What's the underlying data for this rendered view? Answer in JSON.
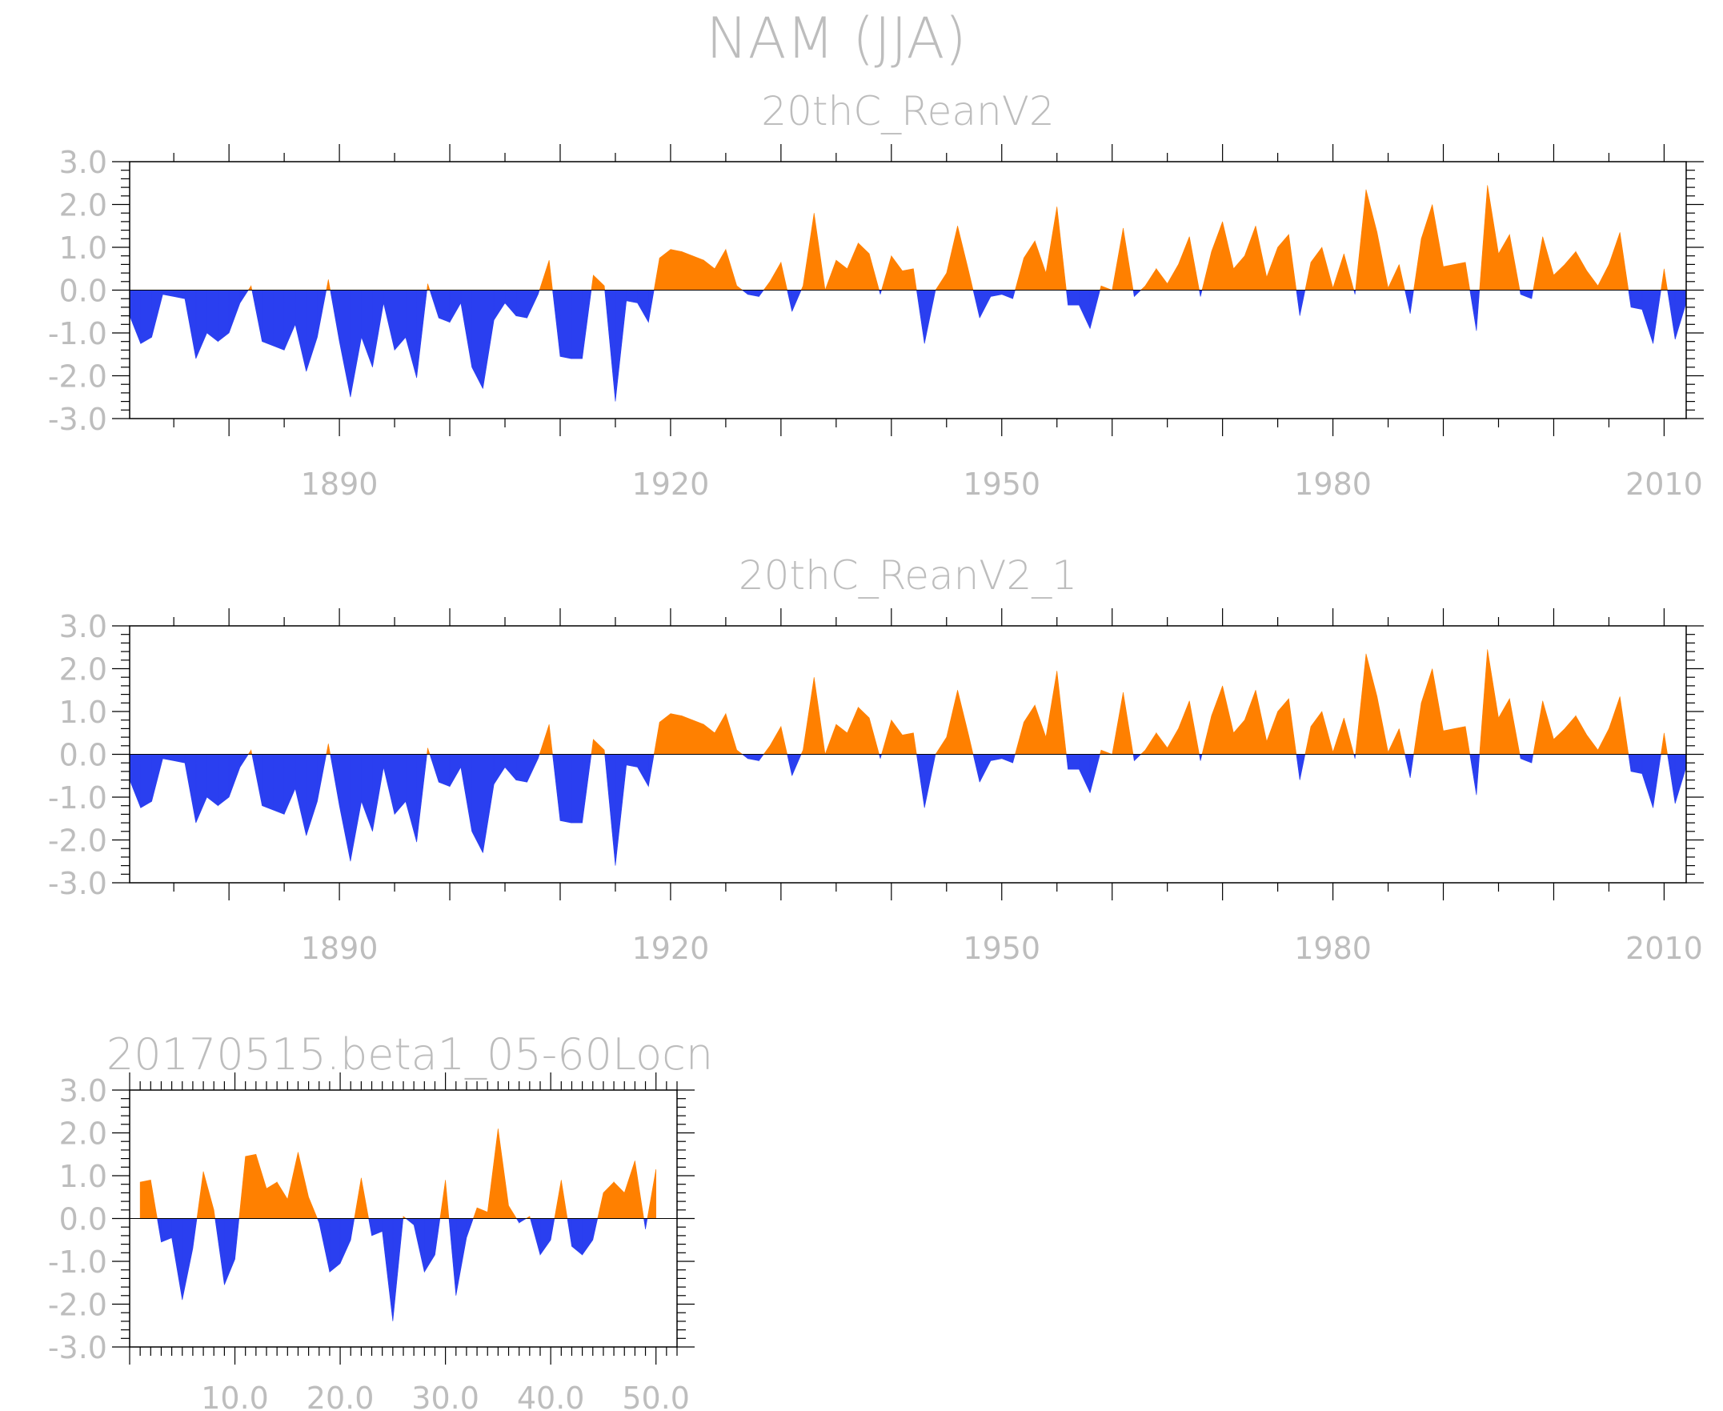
{
  "title": "NAM (JJA)",
  "colors": {
    "positive": "#ff8000",
    "negative": "#2a3ff0",
    "text": "#bdbdbd"
  },
  "chart_data": [
    {
      "type": "area",
      "title": "20thC_ReanV2",
      "xlabel": "",
      "ylabel": "",
      "xlim": [
        1871,
        2012
      ],
      "ylim": [
        -3.0,
        3.0
      ],
      "xticks": [
        1890,
        1920,
        1950,
        1980,
        2010
      ],
      "xtick_labels": [
        "1890",
        "1920",
        "1950",
        "1980",
        "2010"
      ],
      "yticks": [
        -3.0,
        -2.0,
        -1.0,
        0.0,
        1.0,
        2.0,
        3.0
      ],
      "ytick_labels": [
        "-3.0",
        "-2.0",
        "-1.0",
        "0.0",
        "1.0",
        "2.0",
        "3.0"
      ],
      "start_year": 1871,
      "values": [
        -0.6,
        -1.25,
        -1.1,
        -0.1,
        -0.15,
        -0.2,
        -1.6,
        -1.0,
        -1.2,
        -1.0,
        -0.3,
        0.1,
        -1.2,
        -1.3,
        -1.4,
        -0.8,
        -1.9,
        -1.1,
        0.25,
        -1.2,
        -2.5,
        -1.1,
        -1.8,
        -0.3,
        -1.4,
        -1.1,
        -2.05,
        0.15,
        -0.65,
        -0.75,
        -0.3,
        -1.8,
        -2.3,
        -0.7,
        -0.3,
        -0.6,
        -0.65,
        -0.1,
        0.7,
        -1.55,
        -1.6,
        -1.6,
        0.35,
        0.1,
        -2.6,
        -0.25,
        -0.3,
        -0.75,
        0.75,
        0.95,
        0.9,
        0.8,
        0.7,
        0.5,
        0.95,
        0.1,
        -0.1,
        -0.15,
        0.2,
        0.65,
        -0.5,
        0.1,
        1.8,
        0.0,
        0.7,
        0.5,
        1.1,
        0.85,
        -0.1,
        0.8,
        0.45,
        0.5,
        -1.25,
        0.0,
        0.4,
        1.5,
        0.45,
        -0.65,
        -0.15,
        -0.1,
        -0.2,
        0.75,
        1.15,
        0.4,
        1.95,
        -0.35,
        -0.35,
        -0.9,
        0.1,
        0.0,
        1.45,
        -0.15,
        0.1,
        0.5,
        0.15,
        0.6,
        1.25,
        -0.15,
        0.9,
        1.6,
        0.5,
        0.8,
        1.5,
        0.3,
        1.0,
        1.3,
        -0.6,
        0.65,
        1.0,
        0.05,
        0.85,
        -0.1,
        2.35,
        1.35,
        0.05,
        0.6,
        -0.55,
        1.2,
        2.0,
        0.55,
        0.6,
        0.65,
        -0.95,
        2.45,
        0.85,
        1.3,
        -0.1,
        -0.2,
        1.25,
        0.35,
        0.6,
        0.9,
        0.45,
        0.1,
        0.6,
        1.35,
        -0.4,
        -0.45,
        -1.25,
        0.5,
        -1.15,
        -0.3
      ]
    },
    {
      "type": "area",
      "title": "20thC_ReanV2_1",
      "xlabel": "",
      "ylabel": "",
      "xlim": [
        1871,
        2012
      ],
      "ylim": [
        -3.0,
        3.0
      ],
      "xticks": [
        1890,
        1920,
        1950,
        1980,
        2010
      ],
      "xtick_labels": [
        "1890",
        "1920",
        "1950",
        "1980",
        "2010"
      ],
      "yticks": [
        -3.0,
        -2.0,
        -1.0,
        0.0,
        1.0,
        2.0,
        3.0
      ],
      "ytick_labels": [
        "-3.0",
        "-2.0",
        "-1.0",
        "0.0",
        "1.0",
        "2.0",
        "3.0"
      ],
      "start_year": 1871,
      "values": [
        -0.6,
        -1.25,
        -1.1,
        -0.1,
        -0.15,
        -0.2,
        -1.6,
        -1.0,
        -1.2,
        -1.0,
        -0.3,
        0.1,
        -1.2,
        -1.3,
        -1.4,
        -0.8,
        -1.9,
        -1.1,
        0.25,
        -1.2,
        -2.5,
        -1.1,
        -1.8,
        -0.3,
        -1.4,
        -1.1,
        -2.05,
        0.15,
        -0.65,
        -0.75,
        -0.3,
        -1.8,
        -2.3,
        -0.7,
        -0.3,
        -0.6,
        -0.65,
        -0.1,
        0.7,
        -1.55,
        -1.6,
        -1.6,
        0.35,
        0.1,
        -2.6,
        -0.25,
        -0.3,
        -0.75,
        0.75,
        0.95,
        0.9,
        0.8,
        0.7,
        0.5,
        0.95,
        0.1,
        -0.1,
        -0.15,
        0.2,
        0.65,
        -0.5,
        0.1,
        1.8,
        0.0,
        0.7,
        0.5,
        1.1,
        0.85,
        -0.1,
        0.8,
        0.45,
        0.5,
        -1.25,
        0.0,
        0.4,
        1.5,
        0.45,
        -0.65,
        -0.15,
        -0.1,
        -0.2,
        0.75,
        1.15,
        0.4,
        1.95,
        -0.35,
        -0.35,
        -0.9,
        0.1,
        0.0,
        1.45,
        -0.15,
        0.1,
        0.5,
        0.15,
        0.6,
        1.25,
        -0.15,
        0.9,
        1.6,
        0.5,
        0.8,
        1.5,
        0.3,
        1.0,
        1.3,
        -0.6,
        0.65,
        1.0,
        0.05,
        0.85,
        -0.1,
        2.35,
        1.35,
        0.05,
        0.6,
        -0.55,
        1.2,
        2.0,
        0.55,
        0.6,
        0.65,
        -0.95,
        2.45,
        0.85,
        1.3,
        -0.1,
        -0.2,
        1.25,
        0.35,
        0.6,
        0.9,
        0.45,
        0.1,
        0.6,
        1.35,
        -0.4,
        -0.45,
        -1.25,
        0.5,
        -1.15,
        -0.3
      ]
    },
    {
      "type": "area",
      "title": "20170515.beta1_05-60Locn",
      "xlabel": "",
      "ylabel": "",
      "xlim": [
        0,
        52
      ],
      "ylim": [
        -3.0,
        3.0
      ],
      "xticks": [
        10,
        20,
        30,
        40,
        50
      ],
      "xtick_labels": [
        "10.0",
        "20.0",
        "30.0",
        "40.0",
        "50.0"
      ],
      "yticks": [
        -3.0,
        -2.0,
        -1.0,
        0.0,
        1.0,
        2.0,
        3.0
      ],
      "ytick_labels": [
        "-3.0",
        "-2.0",
        "-1.0",
        "0.0",
        "1.0",
        "2.0",
        "3.0"
      ],
      "x": [
        1,
        2,
        3,
        4,
        5,
        6,
        7,
        8,
        9,
        10,
        11,
        12,
        13,
        14,
        15,
        16,
        17,
        18,
        19,
        20,
        21,
        22,
        23,
        24,
        25,
        26,
        27,
        28,
        29,
        30,
        31,
        32,
        33,
        34,
        35,
        36,
        37,
        38,
        39,
        40,
        41,
        42,
        43,
        44,
        45,
        46,
        47,
        48,
        49,
        50
      ],
      "values": [
        0.85,
        0.9,
        -0.55,
        -0.45,
        -1.9,
        -0.7,
        1.1,
        0.2,
        -1.55,
        -0.95,
        1.45,
        1.5,
        0.7,
        0.85,
        0.45,
        1.55,
        0.5,
        -0.1,
        -1.25,
        -1.05,
        -0.5,
        0.95,
        -0.4,
        -0.3,
        -2.4,
        0.05,
        -0.15,
        -1.25,
        -0.85,
        0.9,
        -1.8,
        -0.45,
        0.25,
        0.15,
        2.1,
        0.3,
        -0.1,
        0.05,
        -0.85,
        -0.5,
        0.9,
        -0.65,
        -0.85,
        -0.5,
        0.6,
        0.85,
        0.6,
        1.35,
        -0.25,
        1.15
      ]
    }
  ]
}
